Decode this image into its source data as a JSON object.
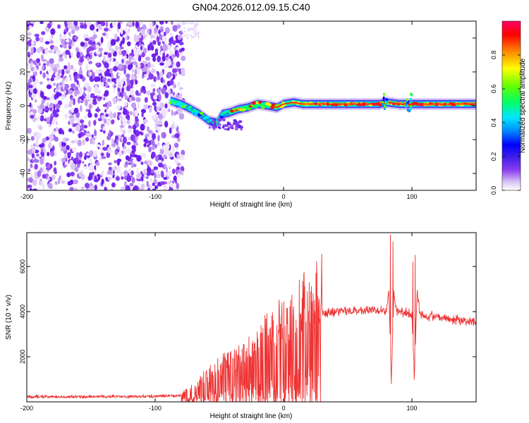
{
  "chart_data": [
    {
      "type": "heatmap",
      "title": "GN04.2026.012.09.15.C40",
      "xlabel": "Height of straight line (km)",
      "ylabel": "Frequency (Hz)",
      "xlim": [
        -200,
        150
      ],
      "ylim": [
        -50,
        50
      ],
      "xticks": [
        -200,
        -100,
        0,
        100
      ],
      "yticks": [
        -40,
        -20,
        0,
        20,
        40
      ],
      "colorbar": {
        "label": "Normalized spectral amplitude",
        "range": [
          0,
          1
        ],
        "ticks": [
          0.0,
          0.2,
          0.4,
          0.6,
          0.8
        ],
        "colors": [
          "#ffffff",
          "#d9c3f5",
          "#8a3df0",
          "#3c1ee8",
          "#0000ff",
          "#0088ff",
          "#00e5ff",
          "#00ff66",
          "#66ff00",
          "#ffff00",
          "#ff8800",
          "#ff0000",
          "#ff0066"
        ]
      },
      "ridge": {
        "description": "Doppler frequency track",
        "x": [
          -88,
          -80,
          -72,
          -65,
          -58,
          -52,
          -48,
          -42,
          -35,
          -28,
          -20,
          -12,
          -5,
          0,
          8,
          15,
          25,
          40,
          60,
          75,
          80,
          90,
          100,
          110,
          130,
          150
        ],
        "y": [
          3,
          1,
          -2,
          -5,
          -9,
          -10,
          -5,
          -4,
          -2,
          -1,
          1,
          0,
          -1,
          1,
          2,
          1,
          1,
          1,
          1,
          1,
          2,
          1,
          1,
          1,
          1,
          1
        ]
      }
    },
    {
      "type": "line",
      "xlabel": "Height of straight line (km)",
      "ylabel": "SNR (10 * v/v)",
      "xlim": [
        -200,
        150
      ],
      "ylim": [
        0,
        7500
      ],
      "xticks": [
        -200,
        -100,
        0,
        100
      ],
      "yticks": [
        2000,
        4000,
        6000
      ],
      "series": [
        {
          "name": "SNR",
          "color": "#ee3333",
          "envelope": {
            "x": [
              -200,
              -150,
              -100,
              -80,
              -70,
              -60,
              -50,
              -40,
              -30,
              -20,
              -10,
              0,
              10,
              20,
              30,
              40,
              60,
              75,
              80,
              82,
              84,
              86,
              88,
              92,
              96,
              100,
              102,
              104,
              106,
              110,
              120,
              130,
              140,
              150
            ],
            "y": [
              200,
              200,
              220,
              250,
              500,
              900,
              1200,
              1500,
              1800,
              2100,
              2500,
              2800,
              3200,
              3700,
              3900,
              4000,
              4050,
              4100,
              4000,
              5000,
              1000,
              4800,
              4000,
              4000,
              4000,
              3800,
              1200,
              5000,
              4000,
              3800,
              3800,
              3700,
              3600,
              3500
            ]
          },
          "spikes": [
            {
              "x": 83.3,
              "y": 7400
            },
            {
              "x": 85.3,
              "y": 7100
            },
            {
              "x": 83.9,
              "y": 800
            },
            {
              "x": 100.8,
              "y": 6200
            },
            {
              "x": 102.6,
              "y": 6500
            },
            {
              "x": 101.8,
              "y": 1000
            }
          ]
        }
      ]
    }
  ]
}
